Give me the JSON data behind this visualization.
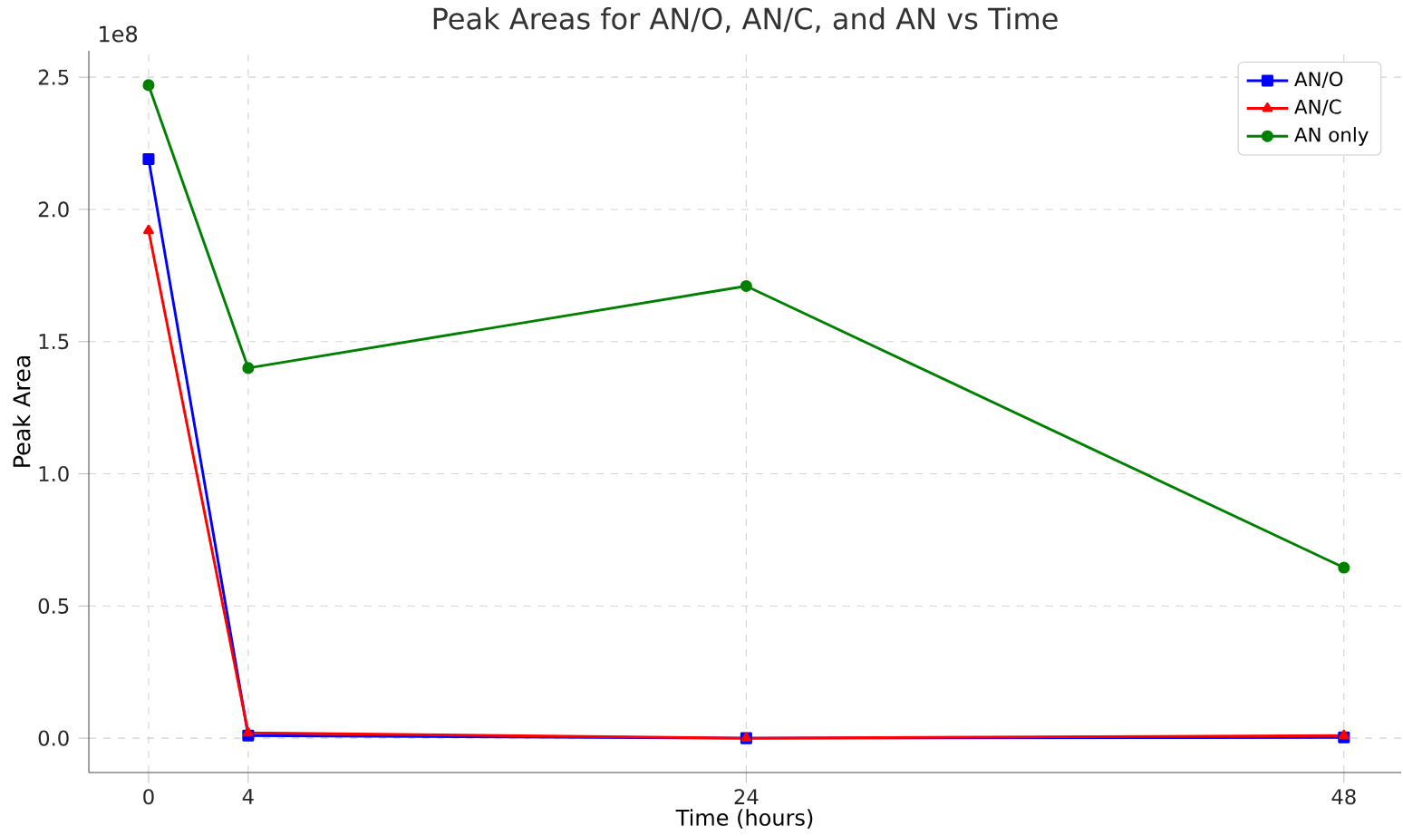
{
  "chart_data": {
    "type": "line",
    "title": "Peak Areas for AN/O, AN/C, and AN vs Time",
    "xlabel": "Time (hours)",
    "ylabel": "Peak Area",
    "annotations": [
      "1e8"
    ],
    "x": [
      0,
      4,
      24,
      48
    ],
    "series": [
      {
        "name": "AN/O",
        "color": "#0000ff",
        "marker": "square",
        "values": [
          2.19,
          0.01,
          0,
          0.003
        ]
      },
      {
        "name": "AN/C",
        "color": "#ff0000",
        "marker": "triangle",
        "values": [
          1.92,
          0.02,
          0,
          0.01
        ]
      },
      {
        "name": "AN only",
        "color": "#008000",
        "marker": "circle",
        "values": [
          2.47,
          1.4,
          1.71,
          0.645
        ]
      }
    ],
    "xlim": [
      -2.4,
      50.3
    ],
    "ylim": [
      -0.13,
      2.6
    ],
    "xticks": [
      0,
      4,
      24,
      48
    ],
    "yticks": [
      {
        "value": 0,
        "label": "0.0"
      },
      {
        "value": 0.5,
        "label": "0.5"
      },
      {
        "value": 1,
        "label": "1.0"
      },
      {
        "value": 1.5,
        "label": "1.5"
      },
      {
        "value": 2,
        "label": "2.0"
      },
      {
        "value": 2.5,
        "label": "2.5"
      }
    ],
    "grid": true,
    "legend": "top right"
  }
}
